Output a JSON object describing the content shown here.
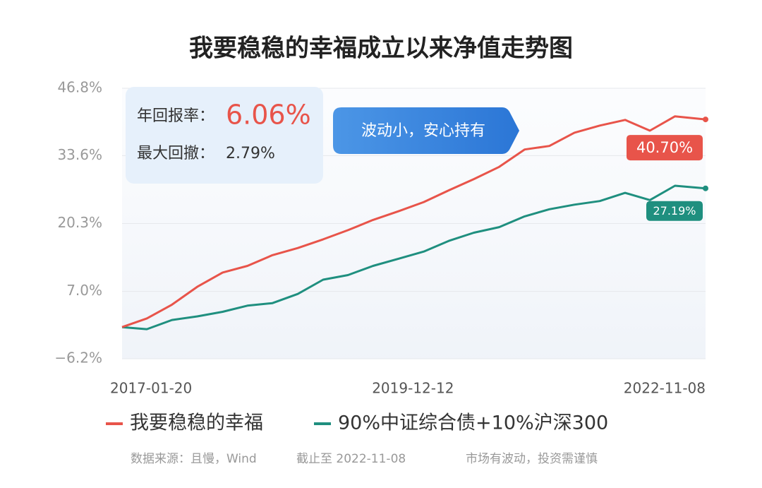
{
  "chart_data": {
    "type": "line",
    "title": "我要稳稳的幸福成立以来净值走势图",
    "x": [
      "2017-01-20",
      "2017-04-20",
      "2017-07-20",
      "2017-10-20",
      "2018-01-20",
      "2018-04-20",
      "2018-07-20",
      "2018-10-20",
      "2019-01-20",
      "2019-04-20",
      "2019-07-20",
      "2019-10-20",
      "2020-01-20",
      "2020-04-20",
      "2020-07-20",
      "2020-10-20",
      "2021-01-20",
      "2021-04-20",
      "2021-07-20",
      "2021-10-20",
      "2022-01-20",
      "2022-04-20",
      "2022-07-20",
      "2022-11-08"
    ],
    "xlim": [
      "2017-01-20",
      "2022-11-08"
    ],
    "xticks": [
      "2017-01-20",
      "2019-12-12",
      "2022-11-08"
    ],
    "ylim": [
      -6.2,
      46.8
    ],
    "yticks": [
      {
        "value": -6.2,
        "label": "−6.2%"
      },
      {
        "value": 7.0,
        "label": "7.0%"
      },
      {
        "value": 20.3,
        "label": "20.3%"
      },
      {
        "value": 33.6,
        "label": "33.6%"
      },
      {
        "value": 46.8,
        "label": "46.8%"
      }
    ],
    "grid": true,
    "series": [
      {
        "name": "我要稳稳的幸福",
        "color": "#e8544a",
        "values": [
          0,
          1.7,
          4.4,
          7.9,
          10.7,
          12.0,
          14.1,
          15.5,
          17.2,
          19.0,
          21.0,
          22.7,
          24.5,
          26.8,
          29.0,
          31.4,
          34.8,
          35.5,
          38.1,
          39.5,
          40.6,
          38.5,
          41.3,
          40.7
        ],
        "value_labels": [
          null,
          null,
          null,
          null,
          null,
          null,
          null,
          null,
          null,
          null,
          null,
          null,
          null,
          null,
          null,
          null,
          null,
          null,
          null,
          null,
          null,
          null,
          null,
          "40.70%"
        ]
      },
      {
        "name": "90%中证综合债+10%沪深300",
        "color": "#1f8f7f",
        "values": [
          0,
          -0.4,
          1.4,
          2.1,
          3.0,
          4.2,
          4.7,
          6.5,
          9.3,
          10.2,
          12.0,
          13.4,
          14.8,
          16.9,
          18.5,
          19.6,
          21.7,
          23.1,
          24.0,
          24.7,
          26.3,
          24.9,
          27.7,
          27.19
        ],
        "value_labels": [
          null,
          null,
          null,
          null,
          null,
          null,
          null,
          null,
          null,
          null,
          null,
          null,
          null,
          null,
          null,
          null,
          null,
          null,
          null,
          null,
          null,
          null,
          null,
          "27.19%"
        ]
      }
    ],
    "info_box": {
      "return_label": "年回报率：",
      "return_value": "6.06%",
      "drawdown_label": "最大回撤：",
      "drawdown_value": "2.79%"
    },
    "callout": "波动小，安心持有",
    "footer": {
      "source": "数据来源：且慢，Wind",
      "cutoff": "截止至 2022-11-08",
      "disclaimer": "市场有波动，投资需谨慎"
    }
  }
}
